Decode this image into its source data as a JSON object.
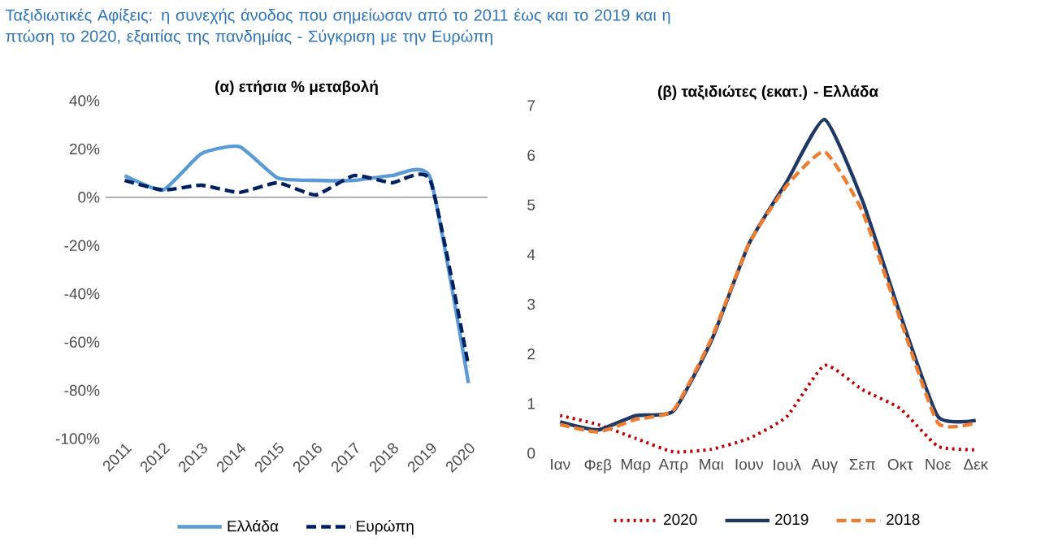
{
  "chart_data": [
    {
      "type": "line",
      "title": "(α) ετήσια % μεταβολή",
      "annotations": [
        "Ταξιδιωτικές Αφίξεις: η συνεχής άνοδος που σημείωσαν από το 2011 έως και το 2019 και η πτώση το 2020, εξαιτίας της πανδημίας - Σύγκριση με την Ευρώπη"
      ],
      "categories": [
        "2011",
        "2012",
        "2013",
        "2014",
        "2015",
        "2016",
        "2017",
        "2018",
        "2019",
        "2020"
      ],
      "series": [
        {
          "name": "Ελλάδα",
          "color": "#5b9bd5",
          "line_style": "solid",
          "values": [
            9,
            3,
            18,
            21,
            8,
            7,
            7,
            9,
            8,
            -77
          ]
        },
        {
          "name": "Ευρώπη",
          "color": "#002060",
          "line_style": "dashed",
          "values": [
            7,
            3,
            5,
            2,
            6,
            1,
            9,
            6,
            7,
            -70
          ]
        }
      ],
      "ylim": [
        -100,
        40
      ],
      "yticks": [
        {
          "value": -100,
          "label": "-100%"
        },
        {
          "value": -80,
          "label": "-80%"
        },
        {
          "value": -60,
          "label": "-60%"
        },
        {
          "value": -40,
          "label": "-40%"
        },
        {
          "value": -20,
          "label": "-20%"
        },
        {
          "value": 0,
          "label": "0%"
        },
        {
          "value": 20,
          "label": "20%"
        },
        {
          "value": 40,
          "label": "40%"
        }
      ],
      "ref_lines": [
        {
          "axis": "y",
          "value": 0,
          "color": "#a6a6a6"
        }
      ],
      "grid": false,
      "legend": "bottom",
      "marker": "none"
    },
    {
      "type": "line",
      "title": "(β) ταξιδιώτες (εκατ.) - Ελλάδα",
      "categories": [
        "Ιαν",
        "Φεβ",
        "Μαρ",
        "Απρ",
        "Μαι",
        "Ιουν",
        "Ιουλ",
        "Αυγ",
        "Σεπ",
        "Οκτ",
        "Νοε",
        "Δεκ"
      ],
      "series": [
        {
          "name": "2020",
          "color": "#c00000",
          "line_style": "dotted",
          "values": [
            0.76,
            0.58,
            0.3,
            0.03,
            0.08,
            0.3,
            0.74,
            1.77,
            1.28,
            0.9,
            0.14,
            0.07
          ]
        },
        {
          "name": "2019",
          "color": "#1f3864",
          "line_style": "solid",
          "values": [
            0.63,
            0.47,
            0.76,
            0.85,
            2.26,
            4.22,
            5.47,
            6.72,
            5.09,
            2.8,
            0.74,
            0.66
          ]
        },
        {
          "name": "2018",
          "color": "#ed7d31",
          "line_style": "dashed",
          "values": [
            0.58,
            0.43,
            0.68,
            0.87,
            2.3,
            4.22,
            5.39,
            6.07,
            4.87,
            2.7,
            0.61,
            0.61
          ]
        }
      ],
      "ylim": [
        0,
        7
      ],
      "yticks": [
        0,
        1,
        2,
        3,
        4,
        5,
        6,
        7
      ],
      "grid": false,
      "legend": "bottom",
      "marker": "none"
    }
  ]
}
